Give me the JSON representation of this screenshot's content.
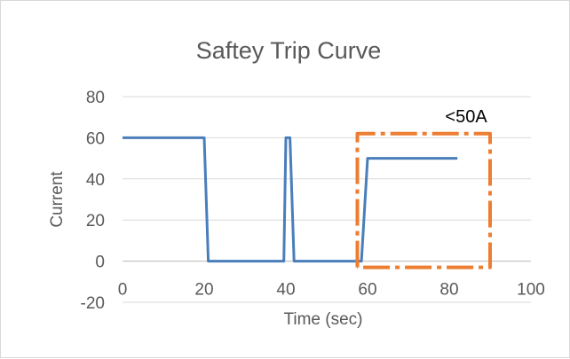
{
  "chart_data": {
    "type": "line",
    "title": "Saftey Trip Curve",
    "xlabel": "Time (sec)",
    "ylabel": "Current",
    "xlim": [
      0,
      100
    ],
    "ylim": [
      -20,
      80
    ],
    "x_ticks": [
      0,
      20,
      40,
      60,
      80,
      100
    ],
    "y_ticks": [
      -20,
      0,
      20,
      40,
      60,
      80
    ],
    "grid": "horizontal",
    "legend": "none",
    "series": [
      {
        "color": "#4a7ebb",
        "style": "solid",
        "x": [
          0,
          20,
          21,
          39.5,
          40,
          41,
          42,
          57.5,
          58.5,
          60,
          82
        ],
        "y": [
          60,
          60,
          0,
          0,
          60,
          60,
          0,
          0,
          0,
          50,
          50
        ]
      },
      {
        "color": "#ed7d31",
        "style": "dash-dot",
        "x": [
          57.5,
          57.5,
          90,
          90,
          57.5
        ],
        "y": [
          -3,
          62,
          62,
          -3,
          -3
        ]
      }
    ],
    "annotations": [
      {
        "text": "<50A",
        "x": 79,
        "y": 71
      }
    ]
  }
}
